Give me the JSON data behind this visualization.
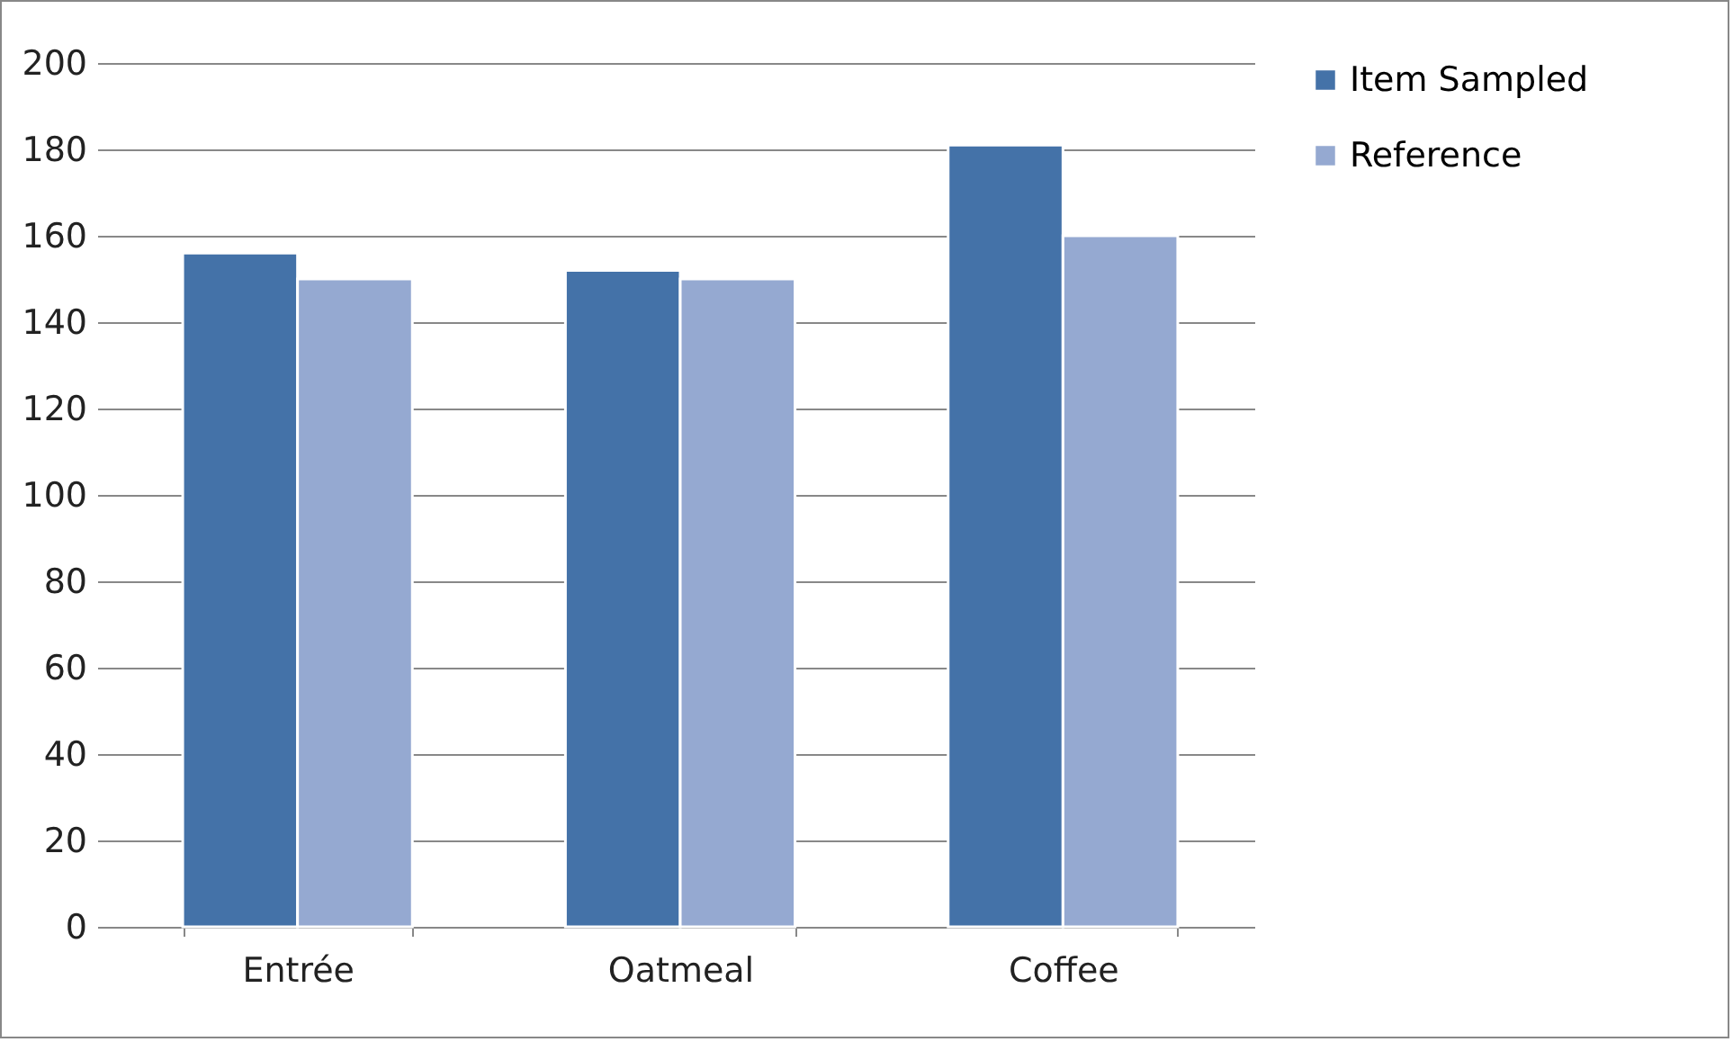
{
  "chart_data": {
    "type": "bar",
    "categories": [
      "Entrée",
      "Oatmeal",
      "Coffee"
    ],
    "series": [
      {
        "name": "Item Sampled",
        "color": "#4472a8",
        "values": [
          156,
          152,
          181
        ]
      },
      {
        "name": "Reference",
        "color": "#95a9d1",
        "values": [
          150,
          150,
          160
        ]
      }
    ],
    "ylim": [
      0,
      200
    ],
    "yticks": [
      0,
      20,
      40,
      60,
      80,
      100,
      120,
      140,
      160,
      180,
      200
    ],
    "grid": "y",
    "legend": "right"
  }
}
